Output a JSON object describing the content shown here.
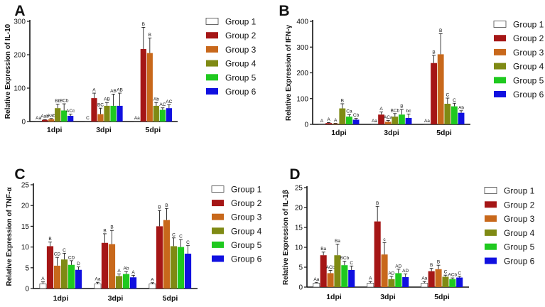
{
  "chart_data": [
    {
      "type": "bar",
      "panel": "A",
      "ylabel": "Relative Expression of IL-10",
      "ylim": [
        0,
        300
      ],
      "yticks": [
        0,
        100,
        200,
        300
      ],
      "categories": [
        "1dpi",
        "3dpi",
        "5dpi"
      ],
      "series": [
        {
          "name": "Group 1",
          "color": "#ffffff",
          "values": [
            1,
            1,
            1
          ],
          "errors": [
            0,
            0,
            0
          ],
          "labels": [
            "Aa",
            "C",
            "Aa"
          ]
        },
        {
          "name": "Group 2",
          "color": "#a51616",
          "values": [
            5,
            70,
            217
          ],
          "errors": [
            1,
            15,
            65
          ],
          "labels": [
            "Aab",
            "A",
            "B"
          ]
        },
        {
          "name": "Group 3",
          "color": "#c8681b",
          "values": [
            7,
            22,
            205
          ],
          "errors": [
            2,
            18,
            45
          ],
          "labels": [
            "Aab",
            "BC",
            "B"
          ]
        },
        {
          "name": "Group 4",
          "color": "#7f8a14",
          "values": [
            40,
            47,
            47
          ],
          "errors": [
            12,
            10,
            10
          ],
          "labels": [
            "Bb",
            "AB",
            "Ab"
          ]
        },
        {
          "name": "Group 5",
          "color": "#1fc91f",
          "values": [
            33,
            47,
            35
          ],
          "errors": [
            20,
            35,
            6
          ],
          "labels": [
            "BCb",
            "AB",
            "AC"
          ]
        },
        {
          "name": "Group 6",
          "color": "#1010e0",
          "values": [
            17,
            47,
            40
          ],
          "errors": [
            5,
            38,
            10
          ],
          "labels": [
            "ACc",
            "AB",
            "AC"
          ]
        }
      ]
    },
    {
      "type": "bar",
      "panel": "B",
      "ylabel": "Relative Expression of IFN-γ",
      "ylim": [
        0,
        400
      ],
      "yticks": [
        0,
        100,
        200,
        300,
        400
      ],
      "categories": [
        "1dpi",
        "3dpi",
        "5dpi"
      ],
      "series": [
        {
          "name": "Group 1",
          "color": "#ffffff",
          "values": [
            1,
            1,
            1
          ],
          "errors": [
            0,
            0,
            0
          ],
          "labels": [
            "A",
            "Aa",
            "Aa"
          ]
        },
        {
          "name": "Group 2",
          "color": "#a51616",
          "values": [
            5,
            38,
            238
          ],
          "errors": [
            2,
            10,
            30
          ],
          "labels": [
            "A",
            "A",
            "B"
          ]
        },
        {
          "name": "Group 3",
          "color": "#c8681b",
          "values": [
            3,
            10,
            272
          ],
          "errors": [
            1,
            5,
            80
          ],
          "labels": [
            "A",
            "ACa",
            "B"
          ]
        },
        {
          "name": "Group 4",
          "color": "#7f8a14",
          "values": [
            62,
            30,
            80
          ],
          "errors": [
            18,
            12,
            22
          ],
          "labels": [
            "B",
            "BCb",
            "C"
          ]
        },
        {
          "name": "Group 5",
          "color": "#1fc91f",
          "values": [
            30,
            38,
            70
          ],
          "errors": [
            8,
            20,
            12
          ],
          "labels": [
            "Ca",
            "B",
            "C"
          ]
        },
        {
          "name": "Group 6",
          "color": "#1010e0",
          "values": [
            18,
            25,
            45
          ],
          "errors": [
            5,
            15,
            8
          ],
          "labels": [
            "Cb",
            "bc",
            "Ab"
          ]
        }
      ]
    },
    {
      "type": "bar",
      "panel": "C",
      "ylabel": "Relative Expression of TNF-α",
      "ylim": [
        0,
        25
      ],
      "yticks": [
        0,
        5,
        10,
        15,
        20,
        25
      ],
      "categories": [
        "1dpi",
        "3dpi",
        "5dpi"
      ],
      "series": [
        {
          "name": "Group 1",
          "color": "#ffffff",
          "values": [
            1.1,
            1.1,
            1.1
          ],
          "errors": [
            0.5,
            0.4,
            0.3
          ],
          "labels": [
            "A",
            "Aa",
            "A"
          ]
        },
        {
          "name": "Group 2",
          "color": "#a51616",
          "values": [
            10.2,
            11,
            15
          ],
          "errors": [
            1.0,
            2.2,
            3.8
          ],
          "labels": [
            "B",
            "B",
            "B"
          ]
        },
        {
          "name": "Group 3",
          "color": "#c8681b",
          "values": [
            5.5,
            10.7,
            16.5
          ],
          "errors": [
            2.0,
            3.3,
            2.8
          ],
          "labels": [
            "CD",
            "B",
            "B"
          ]
        },
        {
          "name": "Group 4",
          "color": "#7f8a14",
          "values": [
            7.0,
            3.0,
            10.2
          ],
          "errors": [
            1.5,
            0.5,
            2.0
          ],
          "labels": [
            "C",
            "A",
            "C"
          ]
        },
        {
          "name": "Group 5",
          "color": "#1fc91f",
          "values": [
            5.7,
            3.5,
            10.0
          ],
          "errors": [
            1.0,
            0.6,
            1.8
          ],
          "labels": [
            "CD",
            "Ab",
            "C"
          ]
        },
        {
          "name": "Group 6",
          "color": "#1010e0",
          "values": [
            4.5,
            2.7,
            8.4
          ],
          "errors": [
            0.7,
            0.5,
            2.0
          ],
          "labels": [
            "D",
            "A",
            "C"
          ]
        }
      ]
    },
    {
      "type": "bar",
      "panel": "D",
      "ylabel": "Relative Expression of IL-1β",
      "ylim": [
        0,
        25
      ],
      "yticks": [
        0,
        5,
        10,
        15,
        20,
        25
      ],
      "categories": [
        "1dpi",
        "3dpi",
        "5dpi"
      ],
      "series": [
        {
          "name": "Group 1",
          "color": "#ffffff",
          "values": [
            1,
            1,
            1
          ],
          "errors": [
            0.2,
            0.4,
            0.4
          ],
          "labels": [
            "Aa",
            "A",
            "Aa"
          ]
        },
        {
          "name": "Group 2",
          "color": "#a51616",
          "values": [
            8.0,
            16.5,
            4.0
          ],
          "errors": [
            0.8,
            3.8,
            0.7
          ],
          "labels": [
            "Ba",
            "B",
            "B"
          ]
        },
        {
          "name": "Group 3",
          "color": "#c8681b",
          "values": [
            3.5,
            8.2,
            4.5
          ],
          "errors": [
            0.7,
            3.0,
            1.0
          ],
          "labels": [
            "ACb",
            "c",
            "B"
          ]
        },
        {
          "name": "Group 4",
          "color": "#7f8a14",
          "values": [
            8.0,
            2.0,
            2.6
          ],
          "errors": [
            2.8,
            0.7,
            0.4
          ],
          "labels": [
            "Ba",
            "AD",
            "C"
          ]
        },
        {
          "name": "Group 5",
          "color": "#1fc91f",
          "values": [
            5.5,
            3.5,
            2.0
          ],
          "errors": [
            1.0,
            1.0,
            0.3
          ],
          "labels": [
            "BCb",
            "AD",
            "ACb"
          ]
        },
        {
          "name": "Group 6",
          "color": "#1010e0",
          "values": [
            4.3,
            2.5,
            2.4
          ],
          "errors": [
            1.0,
            0.8,
            0.3
          ],
          "labels": [
            "C",
            "AD",
            "C"
          ]
        }
      ]
    }
  ]
}
